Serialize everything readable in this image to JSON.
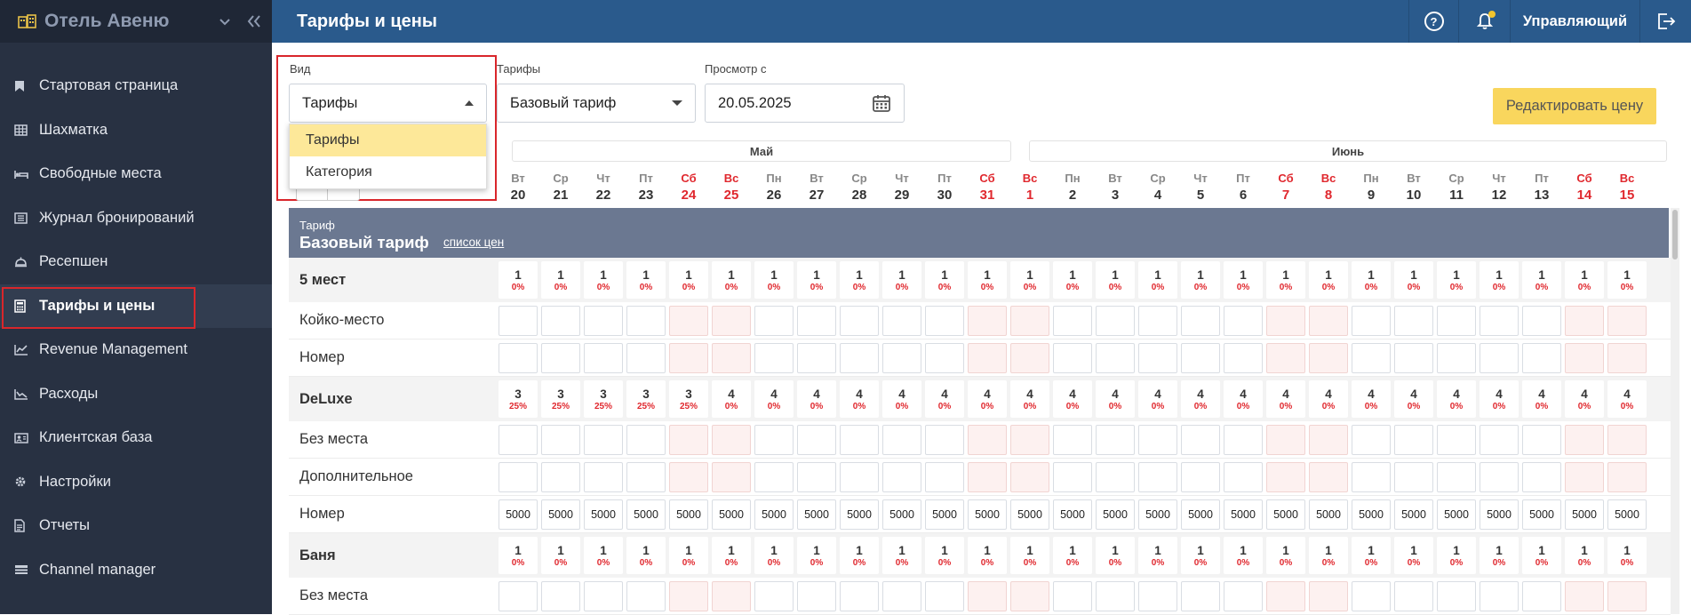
{
  "sidebar": {
    "title": "Отель Авеню",
    "items": [
      {
        "label": "Стартовая страница",
        "icon": "bookmark-icon"
      },
      {
        "label": "Шахматка",
        "icon": "grid-icon"
      },
      {
        "label": "Свободные места",
        "icon": "bed-icon"
      },
      {
        "label": "Журнал бронирований",
        "icon": "journal-icon"
      },
      {
        "label": "Ресепшен",
        "icon": "reception-bell-icon"
      },
      {
        "label": "Тарифы и цены",
        "icon": "calculator-icon",
        "active": true
      },
      {
        "label": "Revenue Management",
        "icon": "trend-chart-icon"
      },
      {
        "label": "Расходы",
        "icon": "expense-chart-icon"
      },
      {
        "label": "Клиентская база",
        "icon": "contact-card-icon"
      },
      {
        "label": "Настройки",
        "icon": "gear-icon"
      },
      {
        "label": "Отчеты",
        "icon": "report-icon"
      },
      {
        "label": "Channel manager",
        "icon": "channel-icon"
      }
    ]
  },
  "topbar": {
    "title": "Тарифы и цены",
    "user": "Управляющий"
  },
  "filters": {
    "view_label": "Вид",
    "view_value": "Тарифы",
    "view_options": [
      "Тарифы",
      "Категория"
    ],
    "tariffs_label": "Тарифы",
    "tariffs_value": "Базовый тариф",
    "date_label": "Просмотр с",
    "date_value": "20.05.2025",
    "edit_button": "Редактировать цену"
  },
  "months": [
    "Май",
    "Июнь"
  ],
  "days": [
    {
      "wd": "Вт",
      "d": "20",
      "we": false
    },
    {
      "wd": "Ср",
      "d": "21",
      "we": false
    },
    {
      "wd": "Чт",
      "d": "22",
      "we": false
    },
    {
      "wd": "Пт",
      "d": "23",
      "we": false
    },
    {
      "wd": "Сб",
      "d": "24",
      "we": true
    },
    {
      "wd": "Вс",
      "d": "25",
      "we": true
    },
    {
      "wd": "Пн",
      "d": "26",
      "we": false
    },
    {
      "wd": "Вт",
      "d": "27",
      "we": false
    },
    {
      "wd": "Ср",
      "d": "28",
      "we": false
    },
    {
      "wd": "Чт",
      "d": "29",
      "we": false
    },
    {
      "wd": "Пт",
      "d": "30",
      "we": false
    },
    {
      "wd": "Сб",
      "d": "31",
      "we": true
    },
    {
      "wd": "Вс",
      "d": "1",
      "we": true
    },
    {
      "wd": "Пн",
      "d": "2",
      "we": false
    },
    {
      "wd": "Вт",
      "d": "3",
      "we": false
    },
    {
      "wd": "Ср",
      "d": "4",
      "we": false
    },
    {
      "wd": "Чт",
      "d": "5",
      "we": false
    },
    {
      "wd": "Пт",
      "d": "6",
      "we": false
    },
    {
      "wd": "Сб",
      "d": "7",
      "we": true
    },
    {
      "wd": "Вс",
      "d": "8",
      "we": true
    },
    {
      "wd": "Пн",
      "d": "9",
      "we": false
    },
    {
      "wd": "Вт",
      "d": "10",
      "we": false
    },
    {
      "wd": "Ср",
      "d": "11",
      "we": false
    },
    {
      "wd": "Чт",
      "d": "12",
      "we": false
    },
    {
      "wd": "Пт",
      "d": "13",
      "we": false
    },
    {
      "wd": "Сб",
      "d": "14",
      "we": true
    },
    {
      "wd": "Вс",
      "d": "15",
      "we": true
    }
  ],
  "tariff": {
    "caption": "Тариф",
    "name": "Базовый тариф",
    "link": "список цен"
  },
  "rows": [
    {
      "type": "cat",
      "label": "5 мест",
      "counts": [
        "1",
        "1",
        "1",
        "1",
        "1",
        "1",
        "1",
        "1",
        "1",
        "1",
        "1",
        "1",
        "1",
        "1",
        "1",
        "1",
        "1",
        "1",
        "1",
        "1",
        "1",
        "1",
        "1",
        "1",
        "1",
        "1",
        "1"
      ],
      "pct": [
        "0%",
        "0%",
        "0%",
        "0%",
        "0%",
        "0%",
        "0%",
        "0%",
        "0%",
        "0%",
        "0%",
        "0%",
        "0%",
        "0%",
        "0%",
        "0%",
        "0%",
        "0%",
        "0%",
        "0%",
        "0%",
        "0%",
        "0%",
        "0%",
        "0%",
        "0%",
        "0%"
      ]
    },
    {
      "type": "sub",
      "label": "Койко-место"
    },
    {
      "type": "sub",
      "label": "Номер"
    },
    {
      "type": "cat",
      "label": "DeLuxe",
      "counts": [
        "3",
        "3",
        "3",
        "3",
        "3",
        "4",
        "4",
        "4",
        "4",
        "4",
        "4",
        "4",
        "4",
        "4",
        "4",
        "4",
        "4",
        "4",
        "4",
        "4",
        "4",
        "4",
        "4",
        "4",
        "4",
        "4",
        "4"
      ],
      "pct": [
        "25%",
        "25%",
        "25%",
        "25%",
        "25%",
        "0%",
        "0%",
        "0%",
        "0%",
        "0%",
        "0%",
        "0%",
        "0%",
        "0%",
        "0%",
        "0%",
        "0%",
        "0%",
        "0%",
        "0%",
        "0%",
        "0%",
        "0%",
        "0%",
        "0%",
        "0%",
        "0%"
      ]
    },
    {
      "type": "sub",
      "label": "Без места"
    },
    {
      "type": "sub",
      "label": "Дополнительное"
    },
    {
      "type": "price",
      "label": "Номер",
      "prices": [
        "5000",
        "5000",
        "5000",
        "5000",
        "5000",
        "5000",
        "5000",
        "5000",
        "5000",
        "5000",
        "5000",
        "5000",
        "5000",
        "5000",
        "5000",
        "5000",
        "5000",
        "5000",
        "5000",
        "5000",
        "5000",
        "5000",
        "5000",
        "5000",
        "5000",
        "5000",
        "5000"
      ]
    },
    {
      "type": "cat",
      "label": "Баня",
      "counts": [
        "1",
        "1",
        "1",
        "1",
        "1",
        "1",
        "1",
        "1",
        "1",
        "1",
        "1",
        "1",
        "1",
        "1",
        "1",
        "1",
        "1",
        "1",
        "1",
        "1",
        "1",
        "1",
        "1",
        "1",
        "1",
        "1",
        "1"
      ],
      "pct": [
        "0%",
        "0%",
        "0%",
        "0%",
        "0%",
        "0%",
        "0%",
        "0%",
        "0%",
        "0%",
        "0%",
        "0%",
        "0%",
        "0%",
        "0%",
        "0%",
        "0%",
        "0%",
        "0%",
        "0%",
        "0%",
        "0%",
        "0%",
        "0%",
        "0%",
        "0%",
        "0%"
      ]
    },
    {
      "type": "sub",
      "label": "Без места"
    }
  ]
}
